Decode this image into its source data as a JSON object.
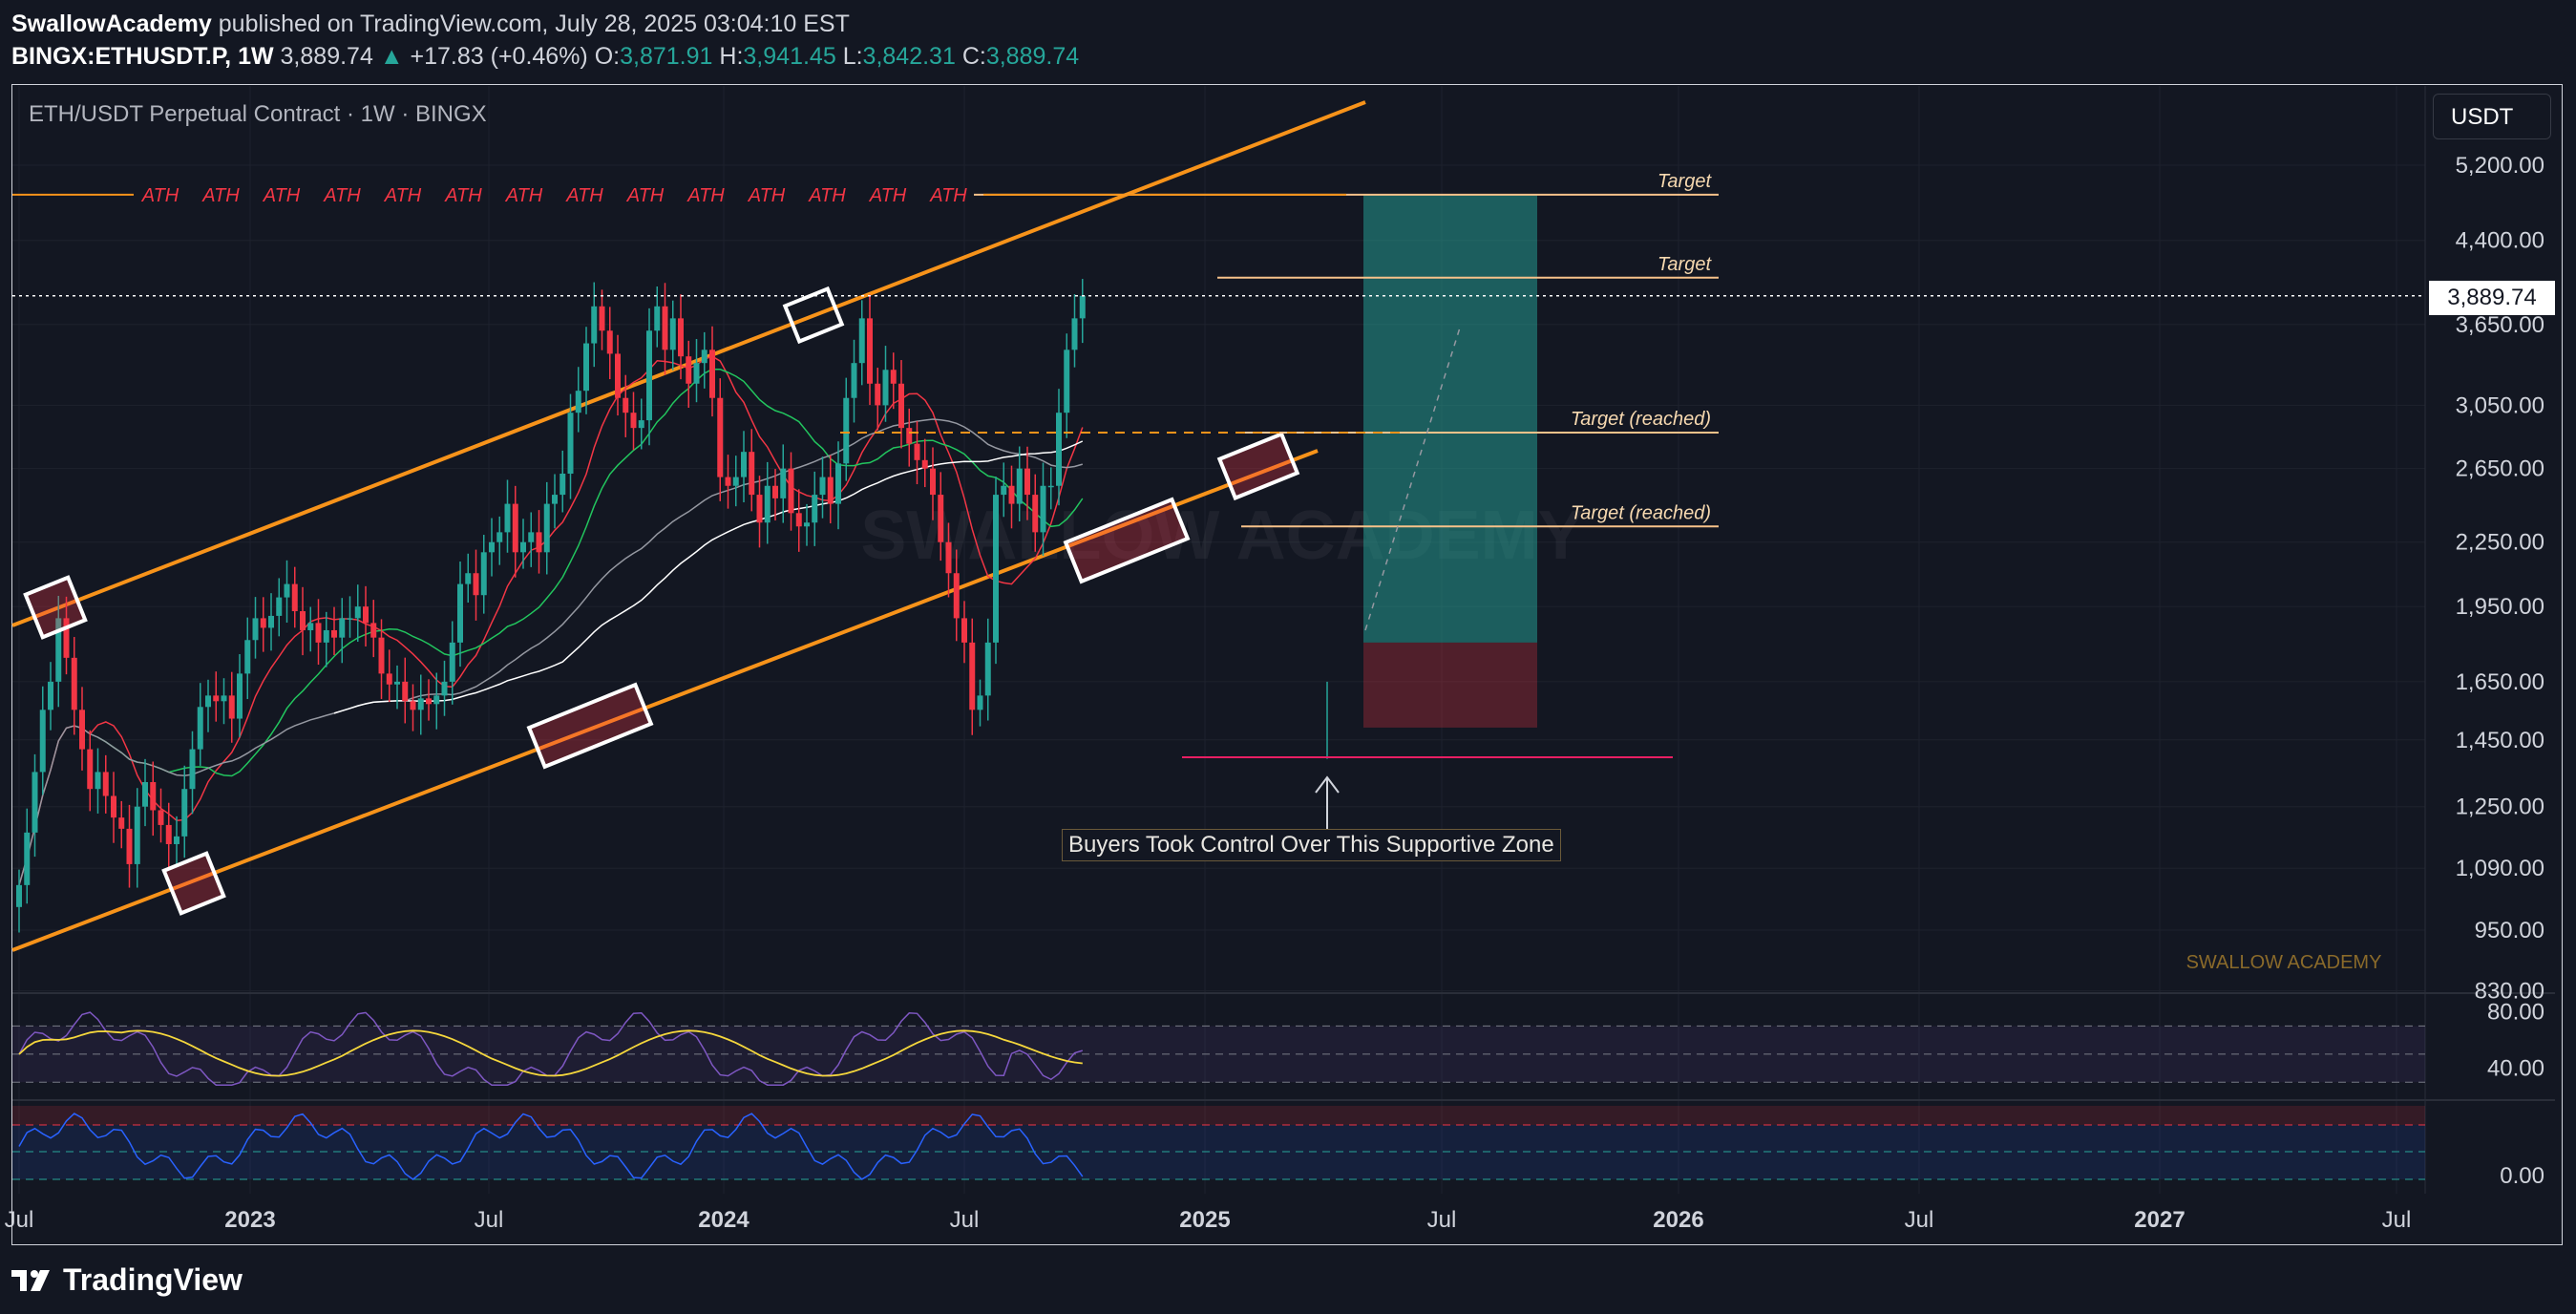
{
  "header": {
    "author": "SwallowAcademy",
    "published_text": "published on TradingView.com, July 28, 2025 03:04:10 EST",
    "symbol": "BINGX:ETHUSDT.P, 1W",
    "last": "3,889.74",
    "change_arrow": "▲",
    "change": "+17.83 (+0.46%)",
    "o_label": "O:",
    "o": "3,871.91",
    "h_label": "H:",
    "h": "3,941.45",
    "l_label": "L:",
    "l": "3,842.31",
    "c_label": "C:",
    "c": "3,889.74"
  },
  "chart_title": "ETH/USDT Perpetual Contract · 1W · BINGX",
  "currency": "USDT",
  "current_price_tag": "3,889.74",
  "watermark": "SWALLOW ACADEMY",
  "watermark_small": "SWALLOW ACADEMY",
  "footer": {
    "logo_text": "TradingView"
  },
  "annotation": "Buyers Took Control Over This Supportive Zone",
  "colors": {
    "bg": "#131722",
    "up": "#26a69a",
    "down": "#f23645",
    "channel": "#f7931a",
    "target_line": "#f7c28a",
    "rsi": "#7e57c2",
    "rsi_ma": "#f5d73c",
    "osc": "#2962ff"
  },
  "chart_data": {
    "type": "candlestick",
    "title": "ETH/USDT Perpetual Contract · 1W · BINGX",
    "y_scale": "log",
    "ylim": [
      820,
      6000
    ],
    "y_ticks": [
      "5,200.00",
      "4,400.00",
      "3,650.00",
      "3,050.00",
      "2,650.00",
      "2,250.00",
      "1,950.00",
      "1,650.00",
      "1,450.00",
      "1,250.00",
      "1,090.00",
      "950.00",
      "830.00"
    ],
    "x_ticks": [
      "Jul",
      "2023",
      "Jul",
      "2024",
      "Jul",
      "2025",
      "Jul",
      "2026",
      "Jul",
      "2027",
      "Jul"
    ],
    "current_price": 3889.74,
    "ath_line": {
      "label": "ATH",
      "repeat": 14,
      "price": 4870
    },
    "targets": [
      {
        "label": "Target",
        "price": 4870
      },
      {
        "label": "Target",
        "price": 4050
      },
      {
        "label": "Target (reached)",
        "price": 2870
      },
      {
        "label": "Target (reached)",
        "price": 2330
      }
    ],
    "support_line_price": 1395,
    "position": {
      "entry": 1800,
      "target": 4870,
      "stop": 1490
    },
    "closes": [
      1050,
      1180,
      1350,
      1550,
      1650,
      1900,
      1740,
      1550,
      1420,
      1300,
      1350,
      1280,
      1220,
      1190,
      1100,
      1250,
      1320,
      1240,
      1200,
      1150,
      1170,
      1300,
      1420,
      1560,
      1600,
      1580,
      1600,
      1520,
      1680,
      1810,
      1900,
      1860,
      1910,
      1990,
      2050,
      1930,
      1850,
      1880,
      1800,
      1850,
      1820,
      1900,
      1900,
      1950,
      1880,
      1820,
      1680,
      1640,
      1650,
      1580,
      1550,
      1590,
      1570,
      1600,
      1650,
      1800,
      2050,
      2100,
      2000,
      2200,
      2250,
      2300,
      2450,
      2200,
      2250,
      2300,
      2200,
      2450,
      2500,
      2620,
      3000,
      3150,
      3500,
      3800,
      3600,
      3420,
      3100,
      3000,
      2900,
      2950,
      3600,
      3800,
      3450,
      3700,
      3400,
      3200,
      3350,
      3450,
      3100,
      2600,
      2550,
      2600,
      2750,
      2500,
      2350,
      2550,
      2480,
      2650,
      2400,
      2330,
      2350,
      2500,
      2600,
      2450,
      2680,
      3100,
      3350,
      3700,
      3200,
      3050,
      3300,
      3200,
      2900,
      2800,
      2700,
      2650,
      2500,
      2250,
      2100,
      1900,
      1800,
      1550,
      1600,
      1800,
      2500,
      2550,
      2450,
      2650,
      2500,
      2300,
      2550,
      2550,
      3000,
      3450,
      3700,
      3890
    ],
    "rsi": {
      "ylim": [
        20,
        90
      ],
      "y_ticks": [
        "80.00",
        "40.00"
      ],
      "upper": 70,
      "lower": 30
    },
    "oscillator": {
      "y_ticks": [
        "0.00"
      ]
    }
  }
}
